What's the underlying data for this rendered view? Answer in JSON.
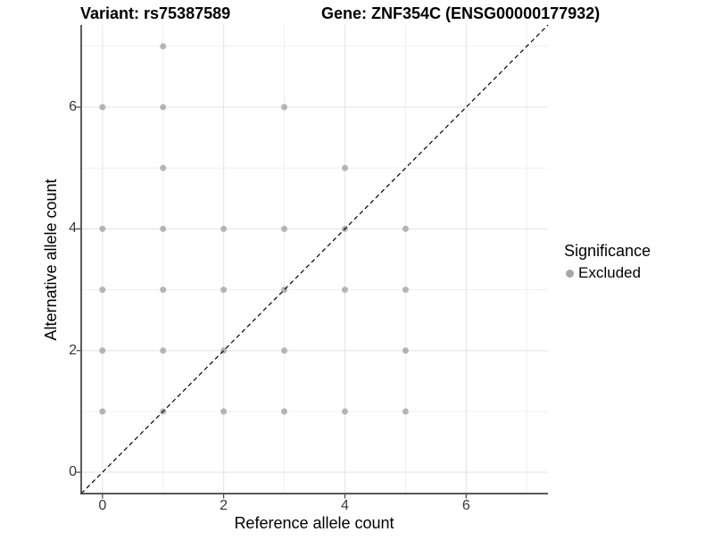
{
  "header": {
    "variant_title": "Variant: rs75387589",
    "gene_title": "Gene: ZNF354C (ENSG00000177932)"
  },
  "legend": {
    "title": "Significance",
    "entries": [
      {
        "label": "Excluded",
        "color": "#a8a8a8",
        "marker": "circle-icon"
      }
    ]
  },
  "chart_data": {
    "type": "scatter",
    "title": "Variant: rs75387589 — Gene: ZNF354C (ENSG00000177932)",
    "xlabel": "Reference allele count",
    "ylabel": "Alternative allele count",
    "xlim": [
      -0.35,
      7.35
    ],
    "ylim": [
      -0.35,
      7.35
    ],
    "x_ticks": [
      0,
      2,
      4,
      6
    ],
    "y_ticks": [
      0,
      2,
      4,
      6
    ],
    "x_minor_gridlines": [
      1,
      3,
      5,
      7
    ],
    "y_minor_gridlines": [
      1,
      3,
      5,
      7
    ],
    "grid": true,
    "legend_position": "right",
    "series": [
      {
        "name": "Excluded",
        "marker": "circle",
        "color": "#a8a8a8",
        "point_radius": 3.5,
        "points": [
          [
            1,
            7
          ],
          [
            0,
            6
          ],
          [
            1,
            6
          ],
          [
            3,
            6
          ],
          [
            1,
            5
          ],
          [
            4,
            5
          ],
          [
            0,
            4
          ],
          [
            1,
            4
          ],
          [
            2,
            4
          ],
          [
            3,
            4
          ],
          [
            4,
            4
          ],
          [
            5,
            4
          ],
          [
            0,
            3
          ],
          [
            1,
            3
          ],
          [
            2,
            3
          ],
          [
            3,
            3
          ],
          [
            4,
            3
          ],
          [
            5,
            3
          ],
          [
            0,
            2
          ],
          [
            1,
            2
          ],
          [
            2,
            2
          ],
          [
            3,
            2
          ],
          [
            5,
            2
          ],
          [
            0,
            1
          ],
          [
            1,
            1
          ],
          [
            2,
            1
          ],
          [
            3,
            1
          ],
          [
            4,
            1
          ],
          [
            5,
            1
          ]
        ]
      }
    ],
    "identity_line": {
      "from": [
        -0.35,
        -0.35
      ],
      "to": [
        7.35,
        7.35
      ],
      "style": "dashed",
      "color": "#000000"
    }
  },
  "colors": {
    "background": "#ffffff",
    "point": "#a8a8a8",
    "grid_major": "#e5e5e5",
    "grid_minor": "#efefef",
    "axis_line": "#404040",
    "tick_text": "#383838",
    "title_text": "#000000",
    "dashed_line": "#000000"
  }
}
